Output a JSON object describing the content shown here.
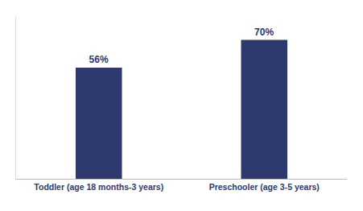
{
  "chart_data": {
    "type": "bar",
    "categories": [
      "Toddler (age 18 months-3 years)",
      "Preschooler (age 3-5 years)"
    ],
    "values": [
      56,
      70
    ],
    "value_labels": [
      "56%",
      "70%"
    ],
    "data_labels": true,
    "color": "#2E3A6E",
    "ylim": [
      0,
      82
    ],
    "grid": false,
    "tick_labels": "x"
  }
}
